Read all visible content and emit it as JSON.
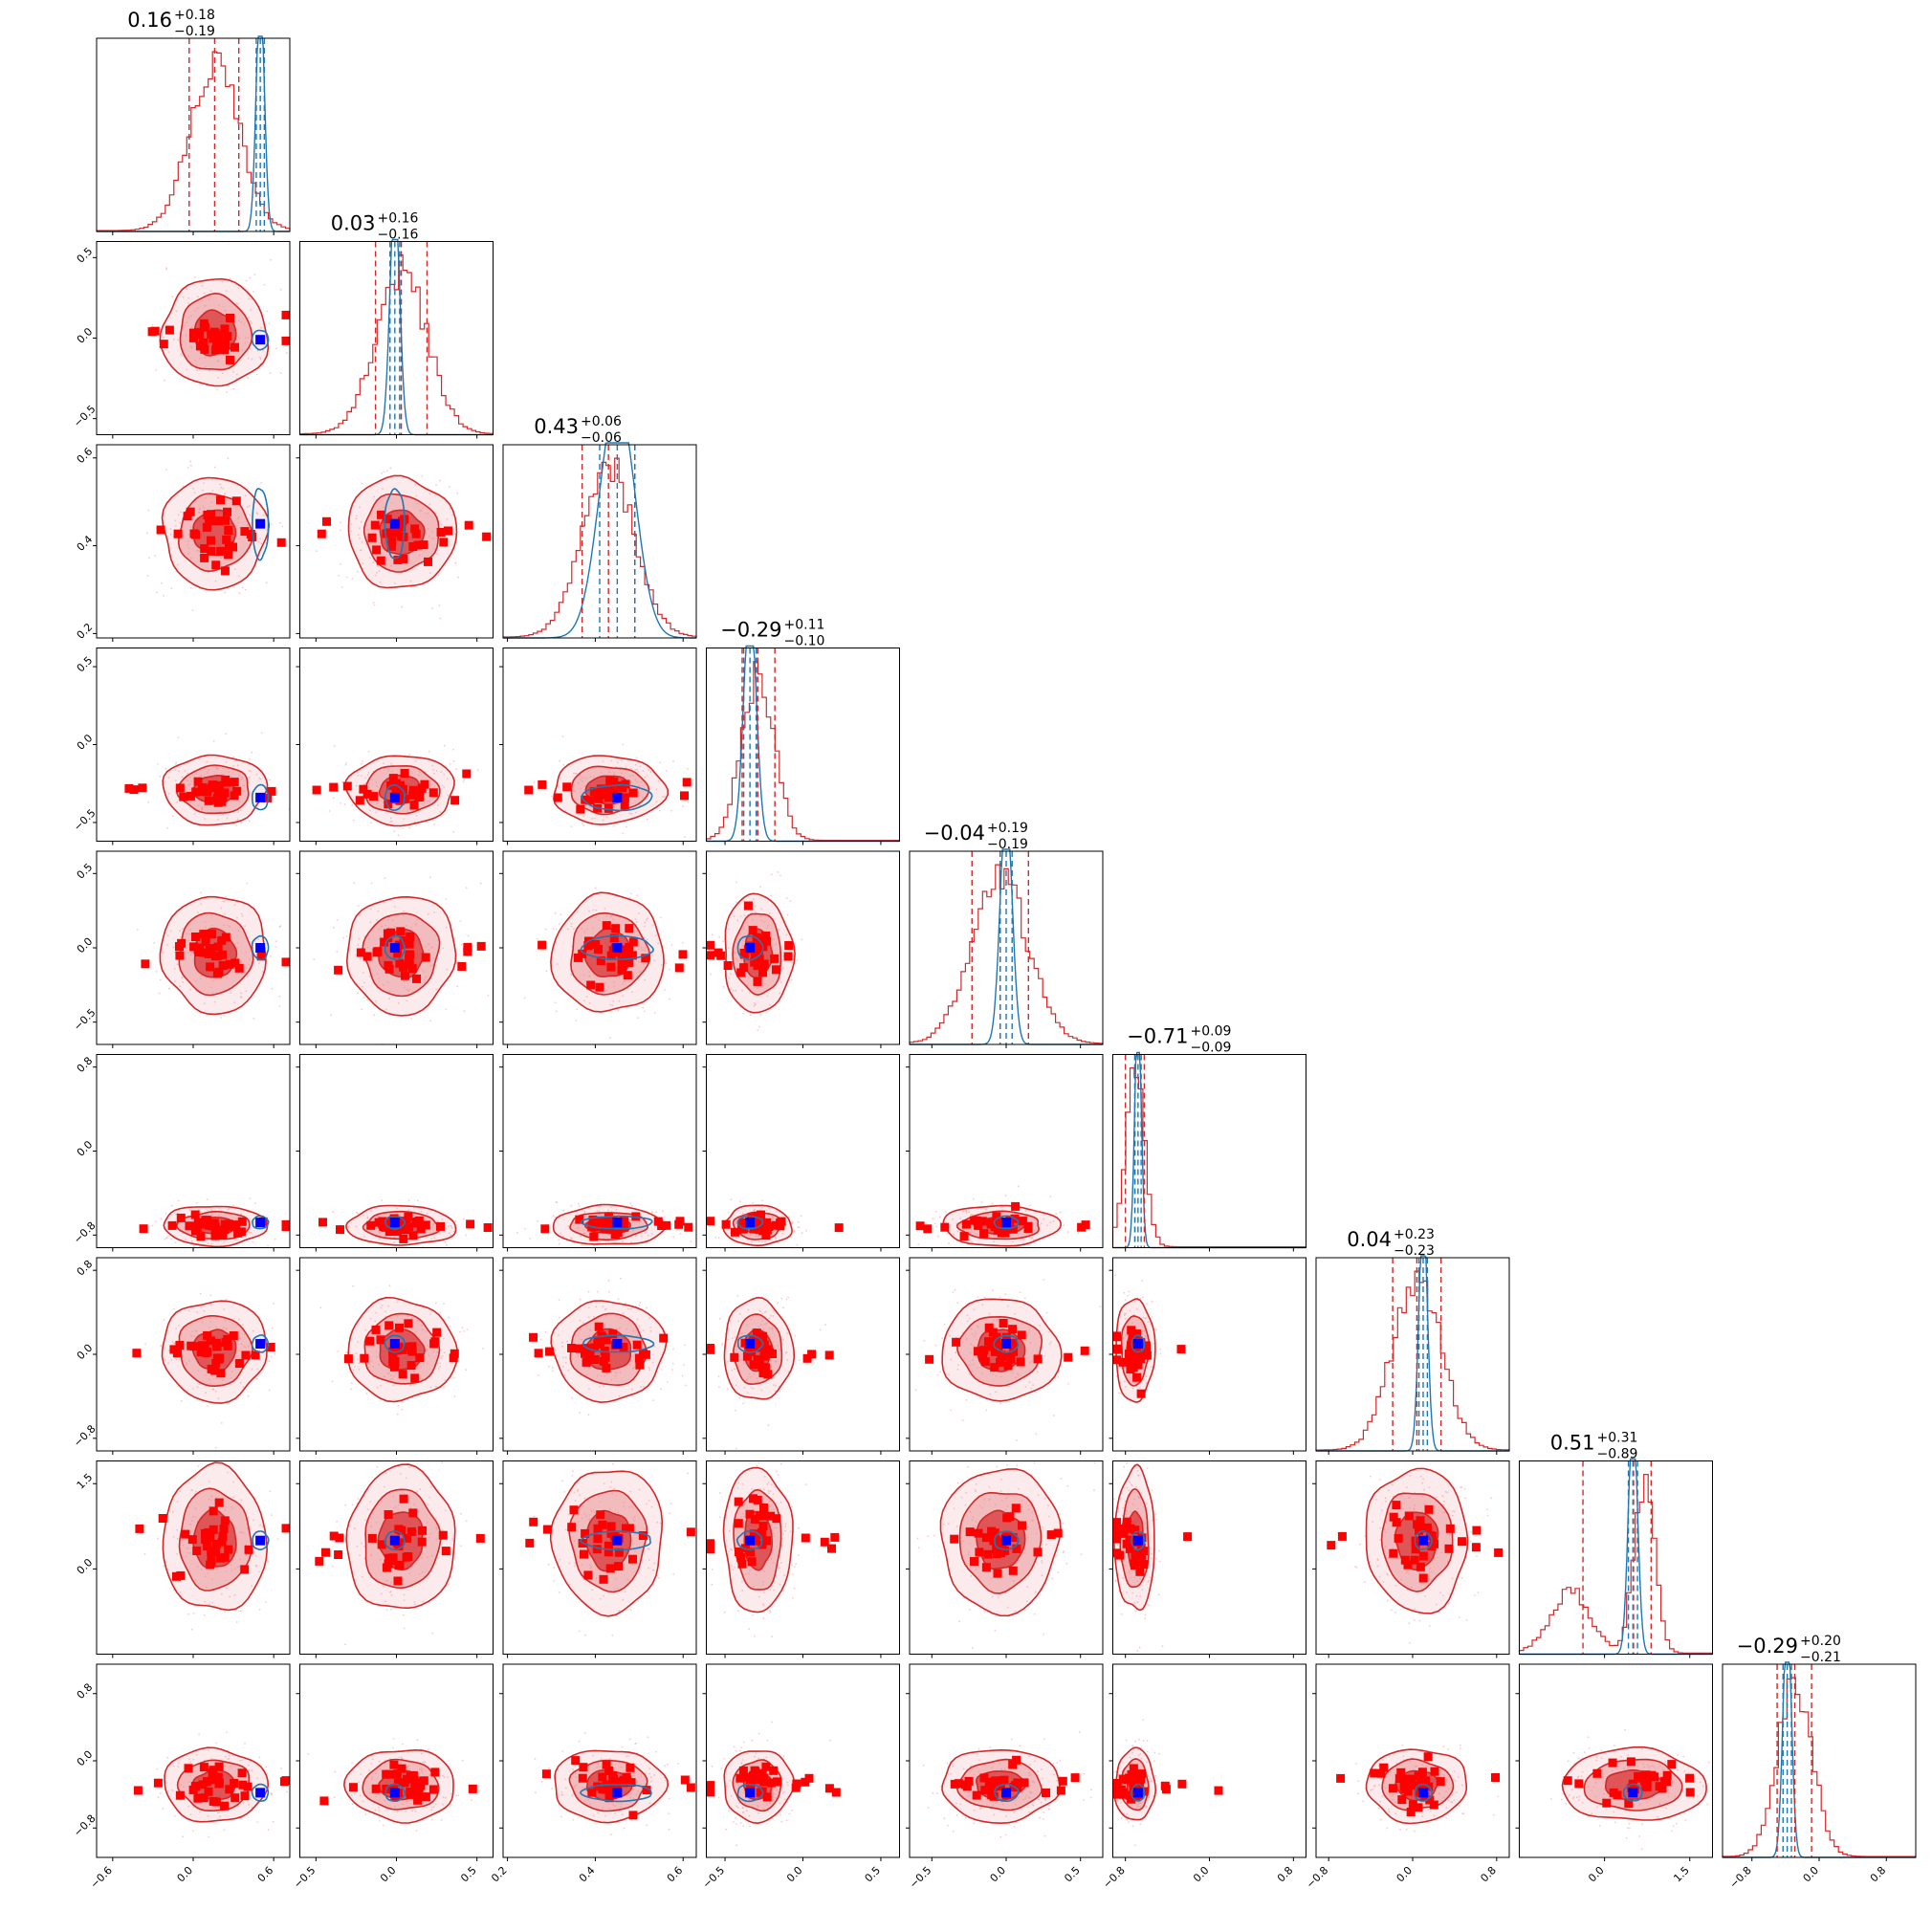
{
  "figure": {
    "kind": "corner-plot",
    "n_params": 9
  },
  "colors": {
    "posterior_a": "#d62728",
    "posterior_a_fill": "#e8868a",
    "posterior_a_core": "#d9373a",
    "posterior_b": "#1f77b4",
    "scatter_marker": "#ff0000",
    "truth_marker": "#0000ff",
    "axis": "#000000",
    "background": "#ffffff"
  },
  "chart_data": {
    "type": "corner",
    "grid": false,
    "params": [
      {
        "index": 0,
        "median": "0.16",
        "plus": "+0.18",
        "minus": "−0.19",
        "median_value": 0.16,
        "range": [
          -0.72,
          0.72
        ],
        "ticks": [
          -0.6,
          0.0,
          0.6
        ],
        "tick_labels": [
          "−0.6",
          "0.0",
          "0.6"
        ],
        "series_b_median": 0.5,
        "series_b_sigma": 0.03
      },
      {
        "index": 1,
        "median": "0.03",
        "plus": "+0.16",
        "minus": "−0.16",
        "median_value": 0.03,
        "range": [
          -0.6,
          0.6
        ],
        "ticks": [
          -0.5,
          0.0,
          0.5
        ],
        "tick_labels": [
          "−0.5",
          "0.0",
          "0.5"
        ],
        "series_b_median": -0.01,
        "series_b_sigma": 0.03
      },
      {
        "index": 2,
        "median": "0.43",
        "plus": "+0.06",
        "minus": "−0.06",
        "median_value": 0.43,
        "range": [
          0.19,
          0.63
        ],
        "ticks": [
          0.2,
          0.4,
          0.6
        ],
        "tick_labels": [
          "0.2",
          "0.4",
          "0.6"
        ],
        "series_b_median": 0.45,
        "series_b_sigma": 0.04
      },
      {
        "index": 3,
        "median": "−0.29",
        "plus": "+0.11",
        "minus": "−0.10",
        "median_value": -0.29,
        "range": [
          -0.62,
          0.62
        ],
        "ticks": [
          -0.5,
          0.0,
          0.5
        ],
        "tick_labels": [
          "−0.5",
          "0.0",
          "0.5"
        ],
        "series_b_median": -0.34,
        "series_b_sigma": 0.04
      },
      {
        "index": 4,
        "median": "−0.04",
        "plus": "+0.19",
        "minus": "−0.19",
        "median_value": -0.04,
        "range": [
          -0.65,
          0.65
        ],
        "ticks": [
          -0.5,
          0.0,
          0.5
        ],
        "tick_labels": [
          "−0.5",
          "0.0",
          "0.5"
        ],
        "series_b_median": 0.0,
        "series_b_sigma": 0.04
      },
      {
        "index": 5,
        "median": "−0.71",
        "plus": "+0.09",
        "minus": "−0.09",
        "median_value": -0.71,
        "range": [
          -0.92,
          0.92
        ],
        "ticks": [
          -0.8,
          0.0,
          0.8
        ],
        "tick_labels": [
          "−0.8",
          "0.0",
          "0.8"
        ],
        "series_b_median": -0.68,
        "series_b_sigma": 0.03
      },
      {
        "index": 6,
        "median": "0.04",
        "plus": "+0.23",
        "minus": "−0.23",
        "median_value": 0.04,
        "range": [
          -0.92,
          0.92
        ],
        "ticks": [
          -0.8,
          0.0,
          0.8
        ],
        "tick_labels": [
          "−0.8",
          "0.0",
          "0.8"
        ],
        "series_b_median": 0.1,
        "series_b_sigma": 0.04
      },
      {
        "index": 7,
        "median": "0.51",
        "plus": "+0.31",
        "minus": "−0.89",
        "median_value": 0.51,
        "range": [
          -1.5,
          1.9
        ],
        "ticks": [
          0.0,
          1.5
        ],
        "tick_labels": [
          "0.0",
          "1.5"
        ],
        "series_b_median": 0.5,
        "series_b_sigma": 0.08
      },
      {
        "index": 8,
        "median": "−0.29",
        "plus": "+0.20",
        "minus": "−0.21",
        "median_value": -0.29,
        "range": [
          -1.15,
          1.15
        ],
        "ticks": [
          -0.8,
          0.0,
          0.8
        ],
        "tick_labels": [
          "−0.8",
          "0.0",
          "0.8"
        ],
        "series_b_median": -0.38,
        "series_b_sigma": 0.05
      }
    ],
    "y_ticks": {
      "1": {
        "ticks": [
          -0.5,
          0.0,
          0.5
        ],
        "labels": [
          "−0.5",
          "0.0",
          "0.5"
        ]
      },
      "2": {
        "ticks": [
          0.2,
          0.4,
          0.6
        ],
        "labels": [
          "0.2",
          "0.4",
          "0.6"
        ]
      },
      "3": {
        "ticks": [
          -0.5,
          0.0,
          0.5
        ],
        "labels": [
          "−0.5",
          "0.0",
          "0.5"
        ]
      },
      "4": {
        "ticks": [
          -0.5,
          0.0,
          0.5
        ],
        "labels": [
          "−0.5",
          "0.0",
          "0.5"
        ]
      },
      "5": {
        "ticks": [
          -0.8,
          0.0,
          0.8
        ],
        "labels": [
          "−0.8",
          "0.0",
          "0.8"
        ]
      },
      "6": {
        "ticks": [
          -0.8,
          0.0,
          0.8
        ],
        "labels": [
          "−0.8",
          "0.0",
          "0.8"
        ]
      },
      "7": {
        "ticks": [
          0.0,
          1.5
        ],
        "labels": [
          "0.0",
          "1.5"
        ]
      },
      "8": {
        "ticks": [
          -0.8,
          0.0,
          0.8
        ],
        "labels": [
          "−0.8",
          "0.0",
          "0.8"
        ]
      }
    },
    "truth_values": [
      0.5,
      -0.01,
      0.45,
      -0.34,
      0.0,
      -0.68,
      0.1,
      0.5,
      -0.38
    ]
  }
}
